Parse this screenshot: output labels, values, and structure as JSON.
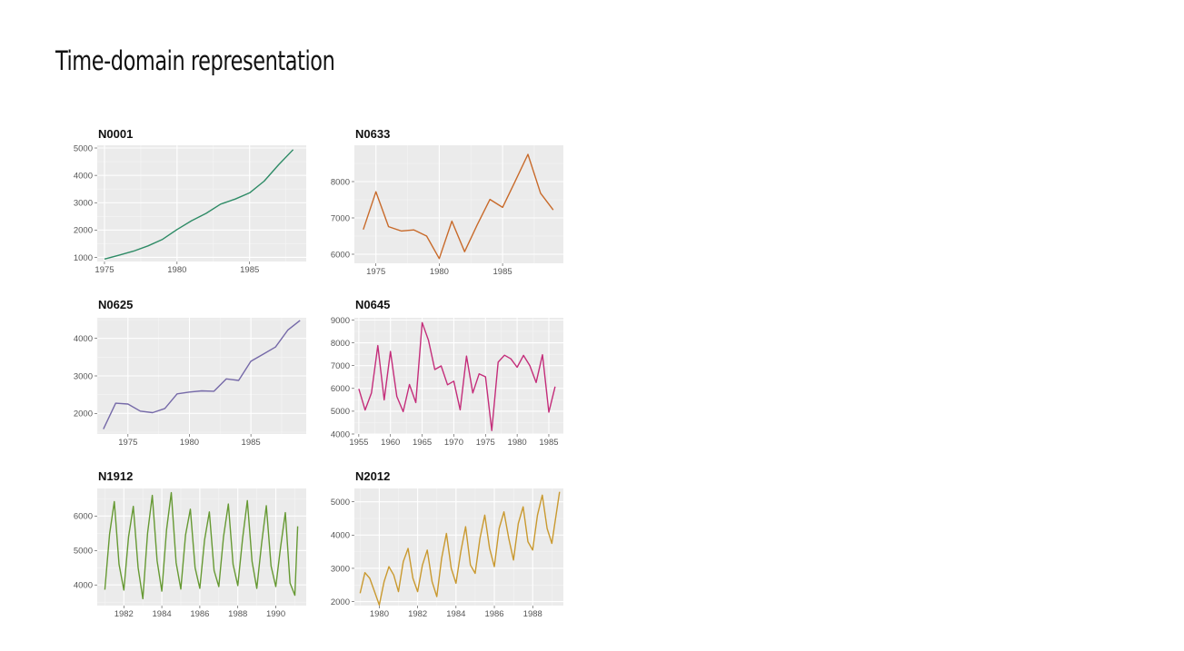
{
  "slide": {
    "title": "Time-domain representation"
  },
  "chart_data": [
    {
      "type": "line",
      "title": "N0001",
      "color": "#2e8b66",
      "xlim": [
        1974.5,
        1988.9
      ],
      "ylim": [
        850,
        5100
      ],
      "xticks": [
        1975,
        1980,
        1985
      ],
      "yticks": [
        1000,
        2000,
        3000,
        4000,
        5000
      ],
      "x": [
        1975,
        1976,
        1977,
        1978,
        1979,
        1980,
        1981,
        1982,
        1983,
        1984,
        1985,
        1986,
        1987,
        1988
      ],
      "y": [
        940,
        1080,
        1230,
        1420,
        1660,
        2020,
        2340,
        2610,
        2950,
        3130,
        3360,
        3790,
        4390,
        4940
      ]
    },
    {
      "type": "line",
      "title": "N0633",
      "color": "#c86a2a",
      "xlim": [
        1973.3,
        1989.8
      ],
      "ylim": [
        5750,
        9000
      ],
      "xticks": [
        1975,
        1980,
        1985
      ],
      "yticks": [
        6000,
        7000,
        8000
      ],
      "x": [
        1974,
        1975,
        1976,
        1977,
        1978,
        1979,
        1980,
        1981,
        1982,
        1983,
        1984,
        1985,
        1986,
        1987,
        1988,
        1989
      ],
      "y": [
        6680,
        7720,
        6760,
        6640,
        6670,
        6500,
        5880,
        6910,
        6070,
        6810,
        7510,
        7290,
        8010,
        8750,
        7680,
        7220
      ]
    },
    {
      "type": "line",
      "title": "N0625",
      "color": "#7569a8",
      "xlim": [
        1972.5,
        1989.5
      ],
      "ylim": [
        1450,
        4550
      ],
      "xticks": [
        1975,
        1980,
        1985
      ],
      "yticks": [
        2000,
        3000,
        4000
      ],
      "x": [
        1973,
        1974,
        1975,
        1976,
        1977,
        1978,
        1979,
        1980,
        1981,
        1982,
        1983,
        1984,
        1985,
        1986,
        1987,
        1988,
        1989
      ],
      "y": [
        1580,
        2270,
        2250,
        2060,
        2020,
        2130,
        2520,
        2570,
        2600,
        2590,
        2920,
        2880,
        3390,
        3580,
        3770,
        4220,
        4480
      ]
    },
    {
      "type": "line",
      "title": "N0645",
      "color": "#c42d7a",
      "xlim": [
        1954.3,
        1987.3
      ],
      "ylim": [
        4000,
        9100
      ],
      "xticks": [
        1955,
        1960,
        1965,
        1970,
        1975,
        1980,
        1985
      ],
      "yticks": [
        4000,
        5000,
        6000,
        7000,
        8000,
        9000
      ],
      "x": [
        1955,
        1956,
        1957,
        1958,
        1959,
        1960,
        1961,
        1962,
        1963,
        1964,
        1965,
        1966,
        1967,
        1968,
        1969,
        1970,
        1971,
        1972,
        1973,
        1974,
        1975,
        1976,
        1977,
        1978,
        1979,
        1980,
        1981,
        1982,
        1983,
        1984,
        1985,
        1986
      ],
      "y": [
        5980,
        5050,
        5800,
        7880,
        5500,
        7620,
        5650,
        4980,
        6170,
        5380,
        8890,
        8120,
        6830,
        6990,
        6160,
        6320,
        5060,
        7420,
        5800,
        6640,
        6510,
        4150,
        7150,
        7460,
        7300,
        6930,
        7450,
        7000,
        6260,
        7480,
        4960,
        6080
      ]
    },
    {
      "type": "line",
      "title": "N1912",
      "color": "#669933",
      "xlim": [
        1980.6,
        1991.6
      ],
      "ylim": [
        3400,
        6800
      ],
      "xticks": [
        1982,
        1984,
        1986,
        1988,
        1990
      ],
      "yticks": [
        4000,
        5000,
        6000
      ],
      "x": [
        1981,
        1981.25,
        1981.5,
        1981.75,
        1982,
        1982.25,
        1982.5,
        1982.75,
        1983,
        1983.25,
        1983.5,
        1983.75,
        1984,
        1984.25,
        1984.5,
        1984.75,
        1985,
        1985.25,
        1985.5,
        1985.75,
        1986,
        1986.25,
        1986.5,
        1986.75,
        1987,
        1987.25,
        1987.5,
        1987.75,
        1988,
        1988.25,
        1988.5,
        1988.75,
        1989,
        1989.25,
        1989.5,
        1989.75,
        1990,
        1990.25,
        1990.5,
        1990.75,
        1991,
        1991.15
      ],
      "y": [
        3860,
        5480,
        6420,
        4600,
        3850,
        5400,
        6280,
        4500,
        3600,
        5500,
        6600,
        4700,
        3820,
        5600,
        6680,
        4650,
        3880,
        5450,
        6200,
        4500,
        3900,
        5300,
        6120,
        4420,
        3950,
        5400,
        6350,
        4600,
        3980,
        5350,
        6450,
        4680,
        3900,
        5200,
        6300,
        4550,
        3950,
        5100,
        6100,
        4050,
        3700,
        5700
      ]
    },
    {
      "type": "line",
      "title": "N2012",
      "color": "#c9992f",
      "xlim": [
        1978.7,
        1989.6
      ],
      "ylim": [
        1880,
        5400
      ],
      "xticks": [
        1980,
        1982,
        1984,
        1986,
        1988
      ],
      "yticks": [
        2000,
        3000,
        4000,
        5000
      ],
      "x": [
        1979,
        1979.25,
        1979.5,
        1979.75,
        1980,
        1980.25,
        1980.5,
        1980.75,
        1981,
        1981.25,
        1981.5,
        1981.75,
        1982,
        1982.25,
        1982.5,
        1982.75,
        1983,
        1983.25,
        1983.5,
        1983.75,
        1984,
        1984.25,
        1984.5,
        1984.75,
        1985,
        1985.25,
        1985.5,
        1985.75,
        1986,
        1986.25,
        1986.5,
        1986.75,
        1987,
        1987.25,
        1987.5,
        1987.75,
        1988,
        1988.25,
        1988.5,
        1988.75,
        1989,
        1989.4
      ],
      "y": [
        2250,
        2870,
        2700,
        2300,
        1900,
        2600,
        3050,
        2800,
        2300,
        3200,
        3600,
        2700,
        2300,
        3100,
        3550,
        2600,
        2150,
        3300,
        4050,
        3000,
        2550,
        3500,
        4250,
        3100,
        2850,
        3900,
        4600,
        3600,
        3050,
        4200,
        4700,
        3900,
        3250,
        4350,
        4850,
        3800,
        3550,
        4600,
        5200,
        4200,
        3750,
        5300
      ]
    }
  ]
}
